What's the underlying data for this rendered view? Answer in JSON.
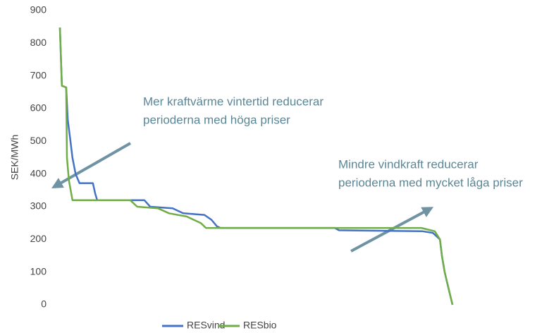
{
  "chart_data": {
    "type": "line",
    "y_label": "SEK/MWh",
    "xlim": [
      0,
      100
    ],
    "ylim": [
      0,
      900
    ],
    "yticks": [
      0,
      100,
      200,
      300,
      400,
      500,
      600,
      700,
      800,
      900
    ],
    "series": [
      {
        "name": "RESvind",
        "color": "#4472c4",
        "x": [
          0,
          0.5,
          1.6,
          2,
          2.7,
          3.2,
          4,
          5,
          8.4,
          9,
          9.5,
          21.5,
          23,
          28.7,
          31.4,
          36.8,
          38.6,
          40,
          40.9,
          70,
          71.1,
          92.4,
          95,
          96.8,
          97.3,
          98,
          99,
          100
        ],
        "values": [
          848,
          670,
          665,
          567,
          500,
          450,
          400,
          372,
          372,
          340,
          320,
          320,
          300,
          295,
          280,
          275,
          260,
          240,
          235,
          235,
          228,
          225,
          220,
          200,
          150,
          100,
          50,
          0
        ]
      },
      {
        "name": "RESbio",
        "color": "#70ad47",
        "x": [
          0,
          0.5,
          1.6,
          1.8,
          2.3,
          3.2,
          17.9,
          19.7,
          25,
          27.8,
          32.3,
          35.9,
          37.2,
          92.1,
          95.5,
          96.8,
          97.3,
          98,
          99,
          100
        ],
        "values": [
          848,
          670,
          665,
          450,
          380,
          320,
          320,
          300,
          295,
          280,
          270,
          250,
          235,
          235,
          225,
          200,
          150,
          100,
          50,
          0
        ]
      }
    ],
    "annotations": [
      {
        "lines": [
          "Mer kraftvärme vintertid reducerar",
          "perioderna med höga priser"
        ]
      },
      {
        "lines": [
          "Mindre vindkraft reducerar",
          "perioderna med mycket låga priser"
        ]
      }
    ]
  }
}
